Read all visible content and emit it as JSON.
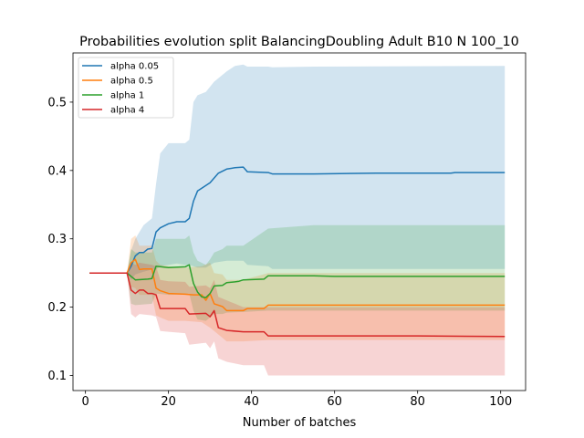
{
  "chart_data": {
    "type": "line",
    "title": "Probabilities evolution split BalancingDoubling Adult B10 N 100_10",
    "xlabel": "Number of batches",
    "ylabel": "",
    "xlim": [
      -3,
      106
    ],
    "ylim": [
      0.078,
      0.572
    ],
    "xticks": [
      0,
      20,
      40,
      60,
      80,
      100
    ],
    "yticks": [
      0.1,
      0.2,
      0.3,
      0.4,
      0.5
    ],
    "grid": false,
    "legend_position": "top-left",
    "series": [
      {
        "name": "alpha 0.05",
        "color": "#1f77b4",
        "points": [
          [
            1,
            0.25
          ],
          [
            8,
            0.25
          ],
          [
            10,
            0.25
          ],
          [
            11,
            0.26
          ],
          [
            12,
            0.275
          ],
          [
            13,
            0.28
          ],
          [
            14,
            0.28
          ],
          [
            15,
            0.285
          ],
          [
            16,
            0.286
          ],
          [
            17,
            0.31
          ],
          [
            18,
            0.316
          ],
          [
            20,
            0.322
          ],
          [
            22,
            0.325
          ],
          [
            24,
            0.325
          ],
          [
            25,
            0.33
          ],
          [
            26,
            0.355
          ],
          [
            27,
            0.37
          ],
          [
            28,
            0.374
          ],
          [
            30,
            0.382
          ],
          [
            32,
            0.396
          ],
          [
            34,
            0.402
          ],
          [
            36,
            0.404
          ],
          [
            38,
            0.405
          ],
          [
            39,
            0.398
          ],
          [
            44,
            0.397
          ],
          [
            45,
            0.395
          ],
          [
            55,
            0.395
          ],
          [
            70,
            0.396
          ],
          [
            88,
            0.396
          ],
          [
            89,
            0.397
          ],
          [
            101,
            0.397
          ]
        ],
        "band": [
          [
            1,
            0.25,
            0.25
          ],
          [
            8,
            0.25,
            0.25
          ],
          [
            10,
            0.25,
            0.25
          ],
          [
            11,
            0.24,
            0.283
          ],
          [
            12,
            0.248,
            0.3
          ],
          [
            13,
            0.25,
            0.31
          ],
          [
            14,
            0.252,
            0.32
          ],
          [
            16,
            0.255,
            0.33
          ],
          [
            17,
            0.255,
            0.38
          ],
          [
            18,
            0.26,
            0.425
          ],
          [
            20,
            0.262,
            0.44
          ],
          [
            22,
            0.264,
            0.44
          ],
          [
            24,
            0.262,
            0.44
          ],
          [
            25,
            0.262,
            0.445
          ],
          [
            26,
            0.26,
            0.5
          ],
          [
            27,
            0.258,
            0.51
          ],
          [
            29,
            0.258,
            0.515
          ],
          [
            31,
            0.265,
            0.53
          ],
          [
            34,
            0.268,
            0.545
          ],
          [
            36,
            0.268,
            0.553
          ],
          [
            38,
            0.268,
            0.555
          ],
          [
            39,
            0.262,
            0.552
          ],
          [
            44,
            0.26,
            0.552
          ],
          [
            45,
            0.256,
            0.551
          ],
          [
            55,
            0.256,
            0.552
          ],
          [
            101,
            0.256,
            0.553
          ]
        ]
      },
      {
        "name": "alpha 0.5",
        "color": "#ff7f0e",
        "points": [
          [
            1,
            0.25
          ],
          [
            10,
            0.25
          ],
          [
            11,
            0.265
          ],
          [
            12,
            0.27
          ],
          [
            13,
            0.255
          ],
          [
            14,
            0.256
          ],
          [
            16,
            0.256
          ],
          [
            17,
            0.228
          ],
          [
            18,
            0.224
          ],
          [
            20,
            0.22
          ],
          [
            24,
            0.219
          ],
          [
            26,
            0.218
          ],
          [
            28,
            0.218
          ],
          [
            29,
            0.21
          ],
          [
            30,
            0.22
          ],
          [
            31,
            0.205
          ],
          [
            33,
            0.201
          ],
          [
            34,
            0.195
          ],
          [
            38,
            0.195
          ],
          [
            39,
            0.198
          ],
          [
            43,
            0.198
          ],
          [
            44,
            0.203
          ],
          [
            101,
            0.203
          ]
        ],
        "band": [
          [
            1,
            0.25,
            0.25
          ],
          [
            10,
            0.25,
            0.25
          ],
          [
            11,
            0.23,
            0.3
          ],
          [
            12,
            0.228,
            0.305
          ],
          [
            13,
            0.218,
            0.29
          ],
          [
            16,
            0.218,
            0.29
          ],
          [
            17,
            0.188,
            0.268
          ],
          [
            18,
            0.185,
            0.262
          ],
          [
            20,
            0.18,
            0.26
          ],
          [
            24,
            0.18,
            0.258
          ],
          [
            28,
            0.178,
            0.26
          ],
          [
            30,
            0.17,
            0.265
          ],
          [
            31,
            0.165,
            0.25
          ],
          [
            33,
            0.155,
            0.248
          ],
          [
            34,
            0.15,
            0.24
          ],
          [
            38,
            0.15,
            0.24
          ],
          [
            44,
            0.152,
            0.25
          ],
          [
            101,
            0.152,
            0.25
          ]
        ]
      },
      {
        "name": "alpha 1",
        "color": "#2ca02c",
        "points": [
          [
            1,
            0.25
          ],
          [
            10,
            0.25
          ],
          [
            11,
            0.245
          ],
          [
            12,
            0.24
          ],
          [
            15,
            0.241
          ],
          [
            16,
            0.242
          ],
          [
            17,
            0.26
          ],
          [
            20,
            0.258
          ],
          [
            24,
            0.259
          ],
          [
            25,
            0.262
          ],
          [
            26,
            0.235
          ],
          [
            27,
            0.222
          ],
          [
            28,
            0.215
          ],
          [
            29,
            0.214
          ],
          [
            30,
            0.22
          ],
          [
            31,
            0.231
          ],
          [
            33,
            0.232
          ],
          [
            34,
            0.236
          ],
          [
            36,
            0.237
          ],
          [
            37,
            0.238
          ],
          [
            38,
            0.24
          ],
          [
            43,
            0.241
          ],
          [
            44,
            0.246
          ],
          [
            55,
            0.246
          ],
          [
            60,
            0.245
          ],
          [
            101,
            0.245
          ]
        ],
        "band": [
          [
            1,
            0.25,
            0.25
          ],
          [
            10,
            0.25,
            0.25
          ],
          [
            11,
            0.205,
            0.285
          ],
          [
            12,
            0.203,
            0.28
          ],
          [
            16,
            0.205,
            0.28
          ],
          [
            17,
            0.22,
            0.3
          ],
          [
            20,
            0.218,
            0.3
          ],
          [
            24,
            0.219,
            0.3
          ],
          [
            25,
            0.22,
            0.305
          ],
          [
            26,
            0.195,
            0.28
          ],
          [
            27,
            0.182,
            0.268
          ],
          [
            29,
            0.18,
            0.262
          ],
          [
            30,
            0.185,
            0.27
          ],
          [
            31,
            0.19,
            0.28
          ],
          [
            33,
            0.19,
            0.285
          ],
          [
            34,
            0.192,
            0.29
          ],
          [
            38,
            0.193,
            0.29
          ],
          [
            44,
            0.195,
            0.315
          ],
          [
            55,
            0.195,
            0.32
          ],
          [
            101,
            0.195,
            0.32
          ]
        ]
      },
      {
        "name": "alpha 4",
        "color": "#d62728",
        "points": [
          [
            1,
            0.25
          ],
          [
            10,
            0.25
          ],
          [
            11,
            0.225
          ],
          [
            12,
            0.22
          ],
          [
            13,
            0.225
          ],
          [
            14,
            0.225
          ],
          [
            15,
            0.22
          ],
          [
            16,
            0.22
          ],
          [
            17,
            0.218
          ],
          [
            18,
            0.198
          ],
          [
            20,
            0.198
          ],
          [
            24,
            0.198
          ],
          [
            25,
            0.19
          ],
          [
            29,
            0.191
          ],
          [
            30,
            0.186
          ],
          [
            31,
            0.195
          ],
          [
            32,
            0.17
          ],
          [
            34,
            0.166
          ],
          [
            38,
            0.164
          ],
          [
            43,
            0.164
          ],
          [
            44,
            0.158
          ],
          [
            60,
            0.158
          ],
          [
            80,
            0.158
          ],
          [
            101,
            0.157
          ]
        ],
        "band": [
          [
            1,
            0.25,
            0.25
          ],
          [
            10,
            0.25,
            0.25
          ],
          [
            11,
            0.19,
            0.265
          ],
          [
            12,
            0.185,
            0.262
          ],
          [
            13,
            0.19,
            0.265
          ],
          [
            16,
            0.188,
            0.262
          ],
          [
            17,
            0.186,
            0.26
          ],
          [
            18,
            0.165,
            0.24
          ],
          [
            20,
            0.164,
            0.238
          ],
          [
            24,
            0.162,
            0.237
          ],
          [
            25,
            0.145,
            0.23
          ],
          [
            29,
            0.148,
            0.232
          ],
          [
            30,
            0.14,
            0.228
          ],
          [
            31,
            0.15,
            0.24
          ],
          [
            32,
            0.125,
            0.215
          ],
          [
            34,
            0.12,
            0.21
          ],
          [
            38,
            0.115,
            0.2
          ],
          [
            43,
            0.115,
            0.2
          ],
          [
            44,
            0.1,
            0.2
          ],
          [
            101,
            0.1,
            0.2
          ]
        ]
      }
    ]
  }
}
